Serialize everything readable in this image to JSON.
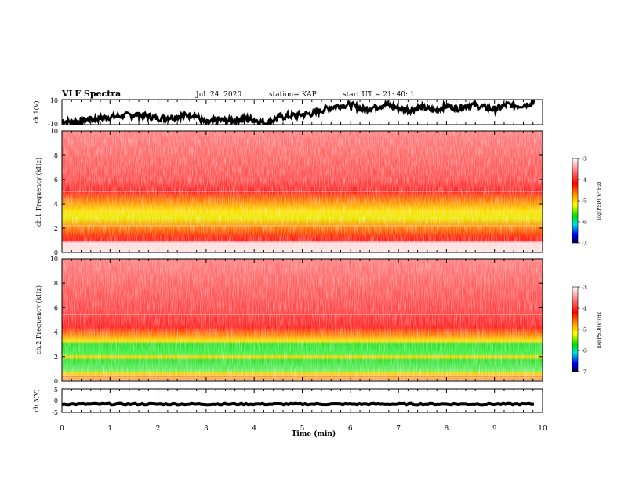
{
  "header": {
    "title": "VLF Spectra",
    "date": "Jul. 24, 2020",
    "station": "station= KAP",
    "start": "start UT =  21: 40: 1"
  },
  "chart_data": [
    {
      "type": "line",
      "name": "ch1-waveform",
      "ylabel": "ch.1(V)",
      "ylim": [
        -10,
        10
      ],
      "yticks": [
        "10",
        "-10"
      ],
      "x": [
        0,
        0.25,
        0.5,
        0.75,
        1.0,
        1.25,
        1.5,
        1.75,
        2.0,
        2.25,
        2.5,
        2.75,
        3.0,
        3.25,
        3.5,
        3.75,
        4.0,
        4.25,
        4.5,
        4.75,
        5.0,
        5.25,
        5.5,
        5.75,
        6.0,
        6.25,
        6.5,
        6.75,
        7.0,
        7.25,
        7.5,
        7.75,
        8.0,
        8.25,
        8.5,
        8.75,
        9.0,
        9.25,
        9.5,
        9.75,
        9.82
      ],
      "y": [
        -7,
        -8,
        -6,
        -5,
        -4,
        -3,
        -2,
        -3,
        -5,
        -4,
        -3,
        -2,
        -9,
        -6,
        -7,
        -5,
        -6,
        -9,
        -4,
        -3,
        -2,
        -1,
        3,
        5,
        6,
        2,
        4,
        6,
        3,
        2,
        4,
        1,
        5,
        3,
        6,
        4,
        2,
        6,
        5,
        7,
        8
      ]
    },
    {
      "type": "heatmap",
      "name": "ch1-spectrogram",
      "ylabel": "ch.1 Frequency (kHz)",
      "ylim": [
        0,
        10
      ],
      "yticks": [
        "0",
        "2",
        "4",
        "6",
        "8",
        "10"
      ],
      "colorbar": {
        "label": "log(PSD)(V²/Hz)",
        "range": [
          -7,
          -3
        ],
        "ticks": [
          "-3",
          "-4",
          "-5",
          "-6",
          "-7"
        ]
      }
    },
    {
      "type": "heatmap",
      "name": "ch2-spectrogram",
      "ylabel": "ch.2 Frequency (kHz)",
      "ylim": [
        0,
        10
      ],
      "yticks": [
        "0",
        "2",
        "4",
        "6",
        "8",
        "10"
      ],
      "colorbar": {
        "label": "log(PSD)(V²/Hz)",
        "range": [
          -7,
          -3
        ],
        "ticks": [
          "-3",
          "-4",
          "-5",
          "-6",
          "-7"
        ]
      }
    },
    {
      "type": "line",
      "name": "ch3-waveform",
      "ylabel": "ch.3(V)",
      "ylim": [
        -5,
        5
      ],
      "yticks": [
        "5",
        "0",
        "-5"
      ],
      "x": [
        0,
        9.82
      ],
      "y": [
        -1.5,
        -1.5
      ]
    }
  ],
  "xaxis": {
    "label": "Time (min)",
    "range": [
      0,
      10
    ],
    "ticks": [
      "0",
      "1",
      "2",
      "3",
      "4",
      "5",
      "6",
      "7",
      "8",
      "9",
      "10"
    ]
  },
  "colors": {
    "background": "#ffffff",
    "axis": "#000000",
    "spec_high": "#ff2020",
    "spec_mid": "#ffd000",
    "spec_low": "#20e020"
  }
}
